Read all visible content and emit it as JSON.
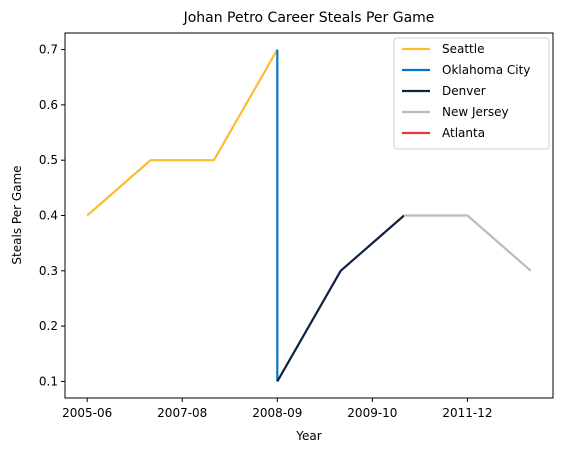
{
  "chart_data": {
    "type": "line",
    "title": "Johan Petro Career Steals Per Game",
    "xlabel": "Year",
    "ylabel": "Steals Per Game",
    "x_tick_labels": [
      "2005-06",
      "2007-08",
      "2008-09",
      "2009-10",
      "2011-12"
    ],
    "y_ticks": [
      0.1,
      0.2,
      0.3,
      0.4,
      0.5,
      0.6,
      0.7
    ],
    "ylim": [
      0.07,
      0.73
    ],
    "legend_position": "top-right",
    "grid": false,
    "series": [
      {
        "name": "Seattle",
        "color": "#FDBB30",
        "x": [
          0,
          1,
          2,
          3
        ],
        "y": [
          0.4,
          0.5,
          0.5,
          0.7
        ]
      },
      {
        "name": "Oklahoma City",
        "color": "#007AC1",
        "x": [
          3,
          3
        ],
        "y": [
          0.7,
          0.1
        ]
      },
      {
        "name": "Denver",
        "color": "#0E2240",
        "x": [
          3,
          4,
          5
        ],
        "y": [
          0.1,
          0.3,
          0.4
        ]
      },
      {
        "name": "New Jersey",
        "color": "#BBBBBB",
        "x": [
          5,
          6,
          7
        ],
        "y": [
          0.4,
          0.4,
          0.3
        ]
      },
      {
        "name": "Atlanta",
        "color": "#E03A3E",
        "x": [],
        "y": []
      }
    ],
    "x_tick_positions": [
      0,
      1.5,
      3,
      4.5,
      6
    ]
  }
}
